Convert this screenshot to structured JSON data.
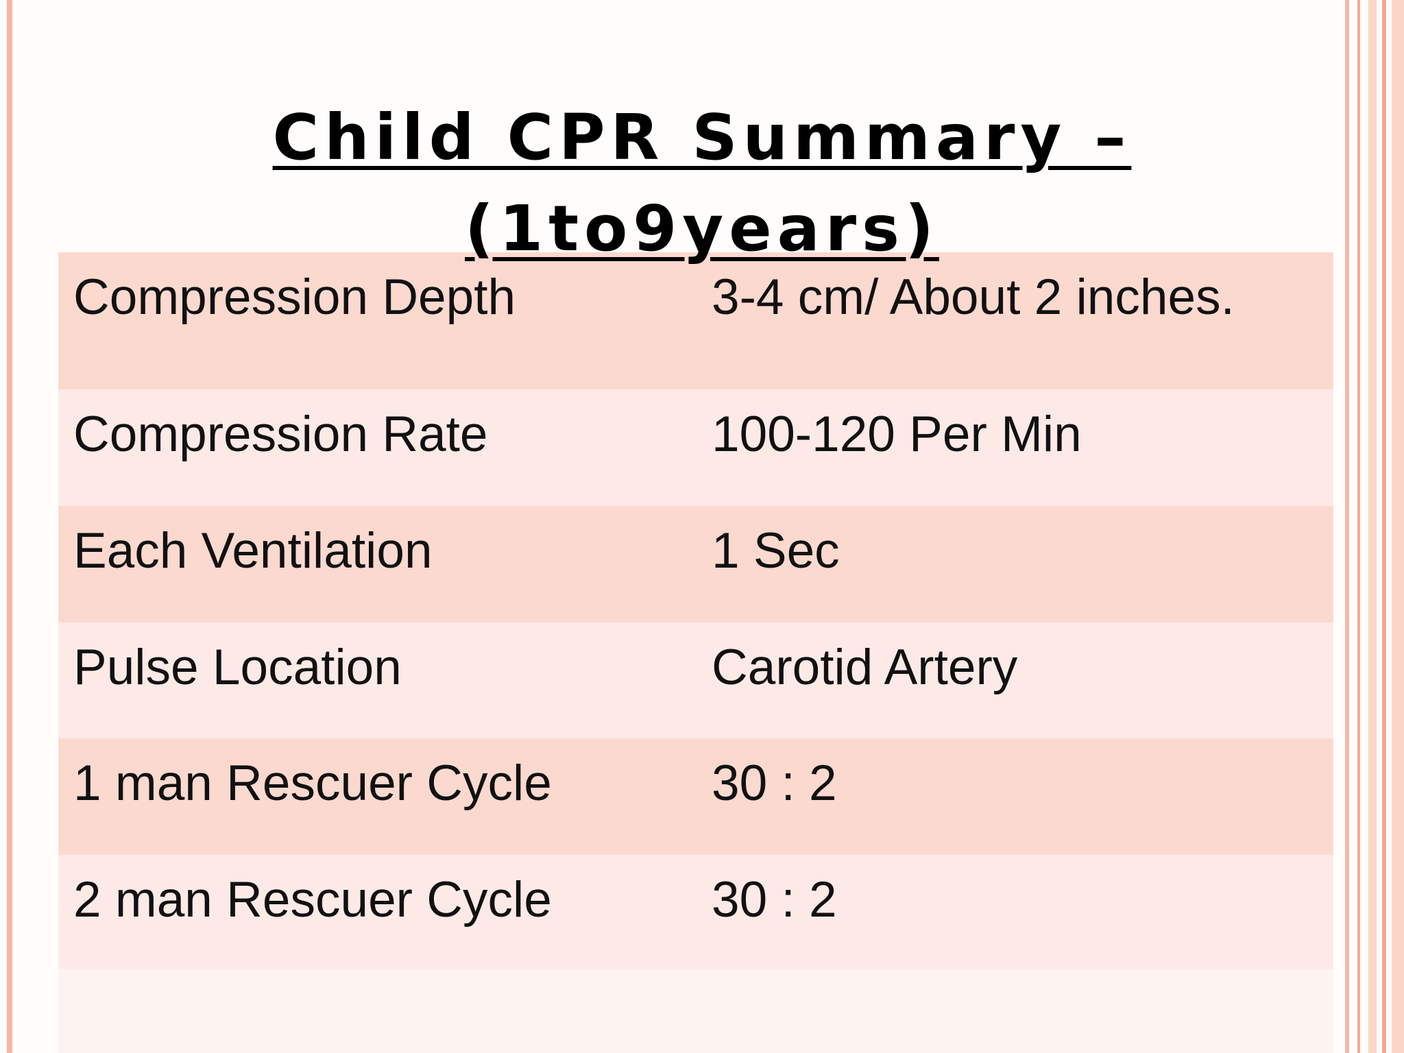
{
  "title": {
    "lines": [
      "Child CPR Summary –",
      "(1to9years)"
    ]
  },
  "table": {
    "rows": [
      [
        "Compression Depth",
        "3-4 cm/ About 2 inches."
      ],
      [
        "Compression Rate",
        "100-120 Per Min"
      ],
      [
        "Each Ventilation",
        "1 Sec"
      ],
      [
        "Pulse Location",
        "Carotid Artery"
      ],
      [
        "1 man Rescuer Cycle",
        "30 : 2"
      ],
      [
        "2 man Rescuer Cycle",
        "30 : 2"
      ]
    ]
  }
}
